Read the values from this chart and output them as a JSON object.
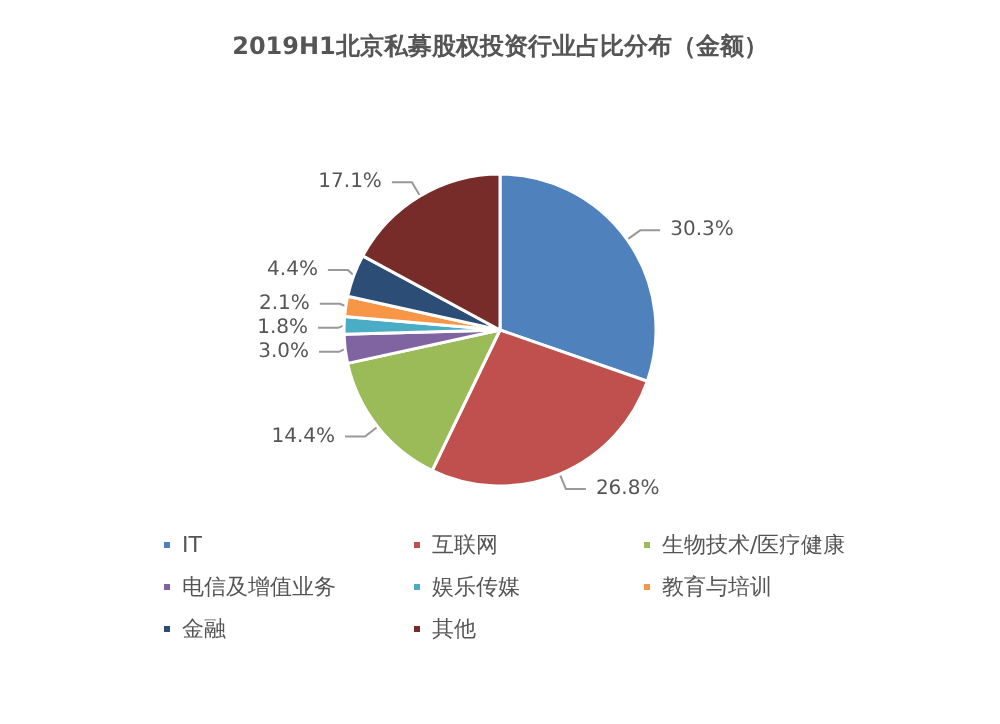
{
  "chart_data": {
    "type": "pie",
    "title": "2019H1北京私募股权投资行业占比分布（金额）",
    "categories": [
      "IT",
      "互联网",
      "生物技术/医疗健康",
      "电信及增值业务",
      "娱乐传媒",
      "教育与培训",
      "金融",
      "其他"
    ],
    "values": [
      30.3,
      26.8,
      14.4,
      3.0,
      1.8,
      2.1,
      4.4,
      17.1
    ],
    "value_labels": [
      "30.3%",
      "26.8%",
      "14.4%",
      "3.0%",
      "1.8%",
      "2.1%",
      "4.4%",
      "17.1%"
    ],
    "colors": [
      "#4f81bd",
      "#c0504d",
      "#9bbb59",
      "#8064a2",
      "#4bacc6",
      "#f79646",
      "#2c4d75",
      "#772c2a"
    ],
    "legend": "bottom"
  }
}
